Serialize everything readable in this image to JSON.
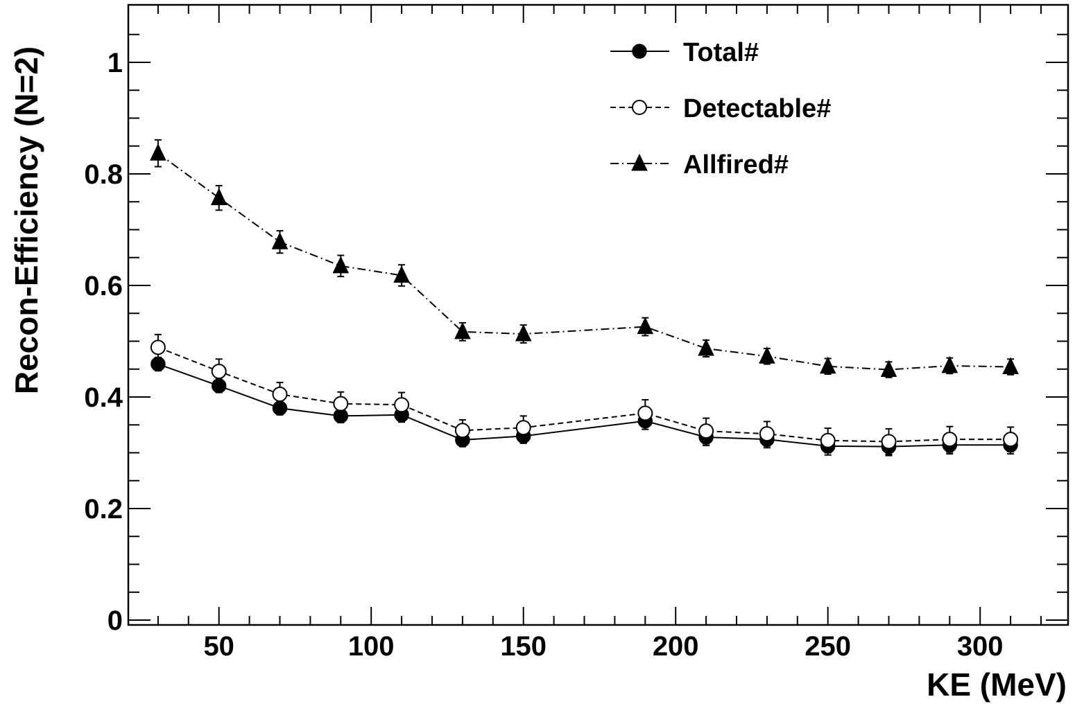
{
  "chart_data": {
    "type": "line",
    "title": "",
    "xlabel": "KE (MeV)",
    "ylabel": "Recon-Efficiency (N=2)",
    "xlim": [
      20,
      328
    ],
    "ylim": [
      0,
      1.1
    ],
    "x_ticks": [
      50,
      100,
      150,
      200,
      250,
      300
    ],
    "x_tick_labels": [
      "50",
      "100",
      "150",
      "200",
      "250",
      "300"
    ],
    "y_ticks": [
      0,
      0.2,
      0.4,
      0.6,
      0.8,
      1
    ],
    "y_tick_labels": [
      "0",
      "0.2",
      "0.4",
      "0.6",
      "0.8",
      "1"
    ],
    "grid": false,
    "legend_position": "top-right",
    "x": [
      30,
      50,
      70,
      90,
      110,
      130,
      150,
      190,
      210,
      230,
      250,
      270,
      290,
      310
    ],
    "series": [
      {
        "name": "Total#",
        "marker": "filled-circle",
        "line": "solid",
        "values": [
          0.459,
          0.42,
          0.38,
          0.366,
          0.368,
          0.323,
          0.33,
          0.357,
          0.328,
          0.324,
          0.312,
          0.311,
          0.314,
          0.314
        ],
        "errors": [
          0.012,
          0.012,
          0.012,
          0.012,
          0.013,
          0.012,
          0.013,
          0.015,
          0.015,
          0.015,
          0.016,
          0.016,
          0.016,
          0.016
        ]
      },
      {
        "name": "Detectable#",
        "marker": "open-circle",
        "line": "dashed",
        "values": [
          0.489,
          0.446,
          0.405,
          0.388,
          0.386,
          0.34,
          0.345,
          0.371,
          0.339,
          0.334,
          0.322,
          0.32,
          0.324,
          0.324
        ],
        "errors": [
          0.023,
          0.022,
          0.021,
          0.021,
          0.022,
          0.019,
          0.021,
          0.024,
          0.023,
          0.022,
          0.022,
          0.023,
          0.023,
          0.022
        ]
      },
      {
        "name": "Allfired#",
        "marker": "filled-triangle",
        "line": "dash-dot",
        "values": [
          0.837,
          0.757,
          0.678,
          0.635,
          0.618,
          0.517,
          0.513,
          0.526,
          0.487,
          0.473,
          0.455,
          0.449,
          0.456,
          0.454
        ],
        "errors": [
          0.024,
          0.022,
          0.02,
          0.019,
          0.019,
          0.016,
          0.016,
          0.016,
          0.015,
          0.014,
          0.014,
          0.014,
          0.014,
          0.014
        ]
      }
    ]
  }
}
